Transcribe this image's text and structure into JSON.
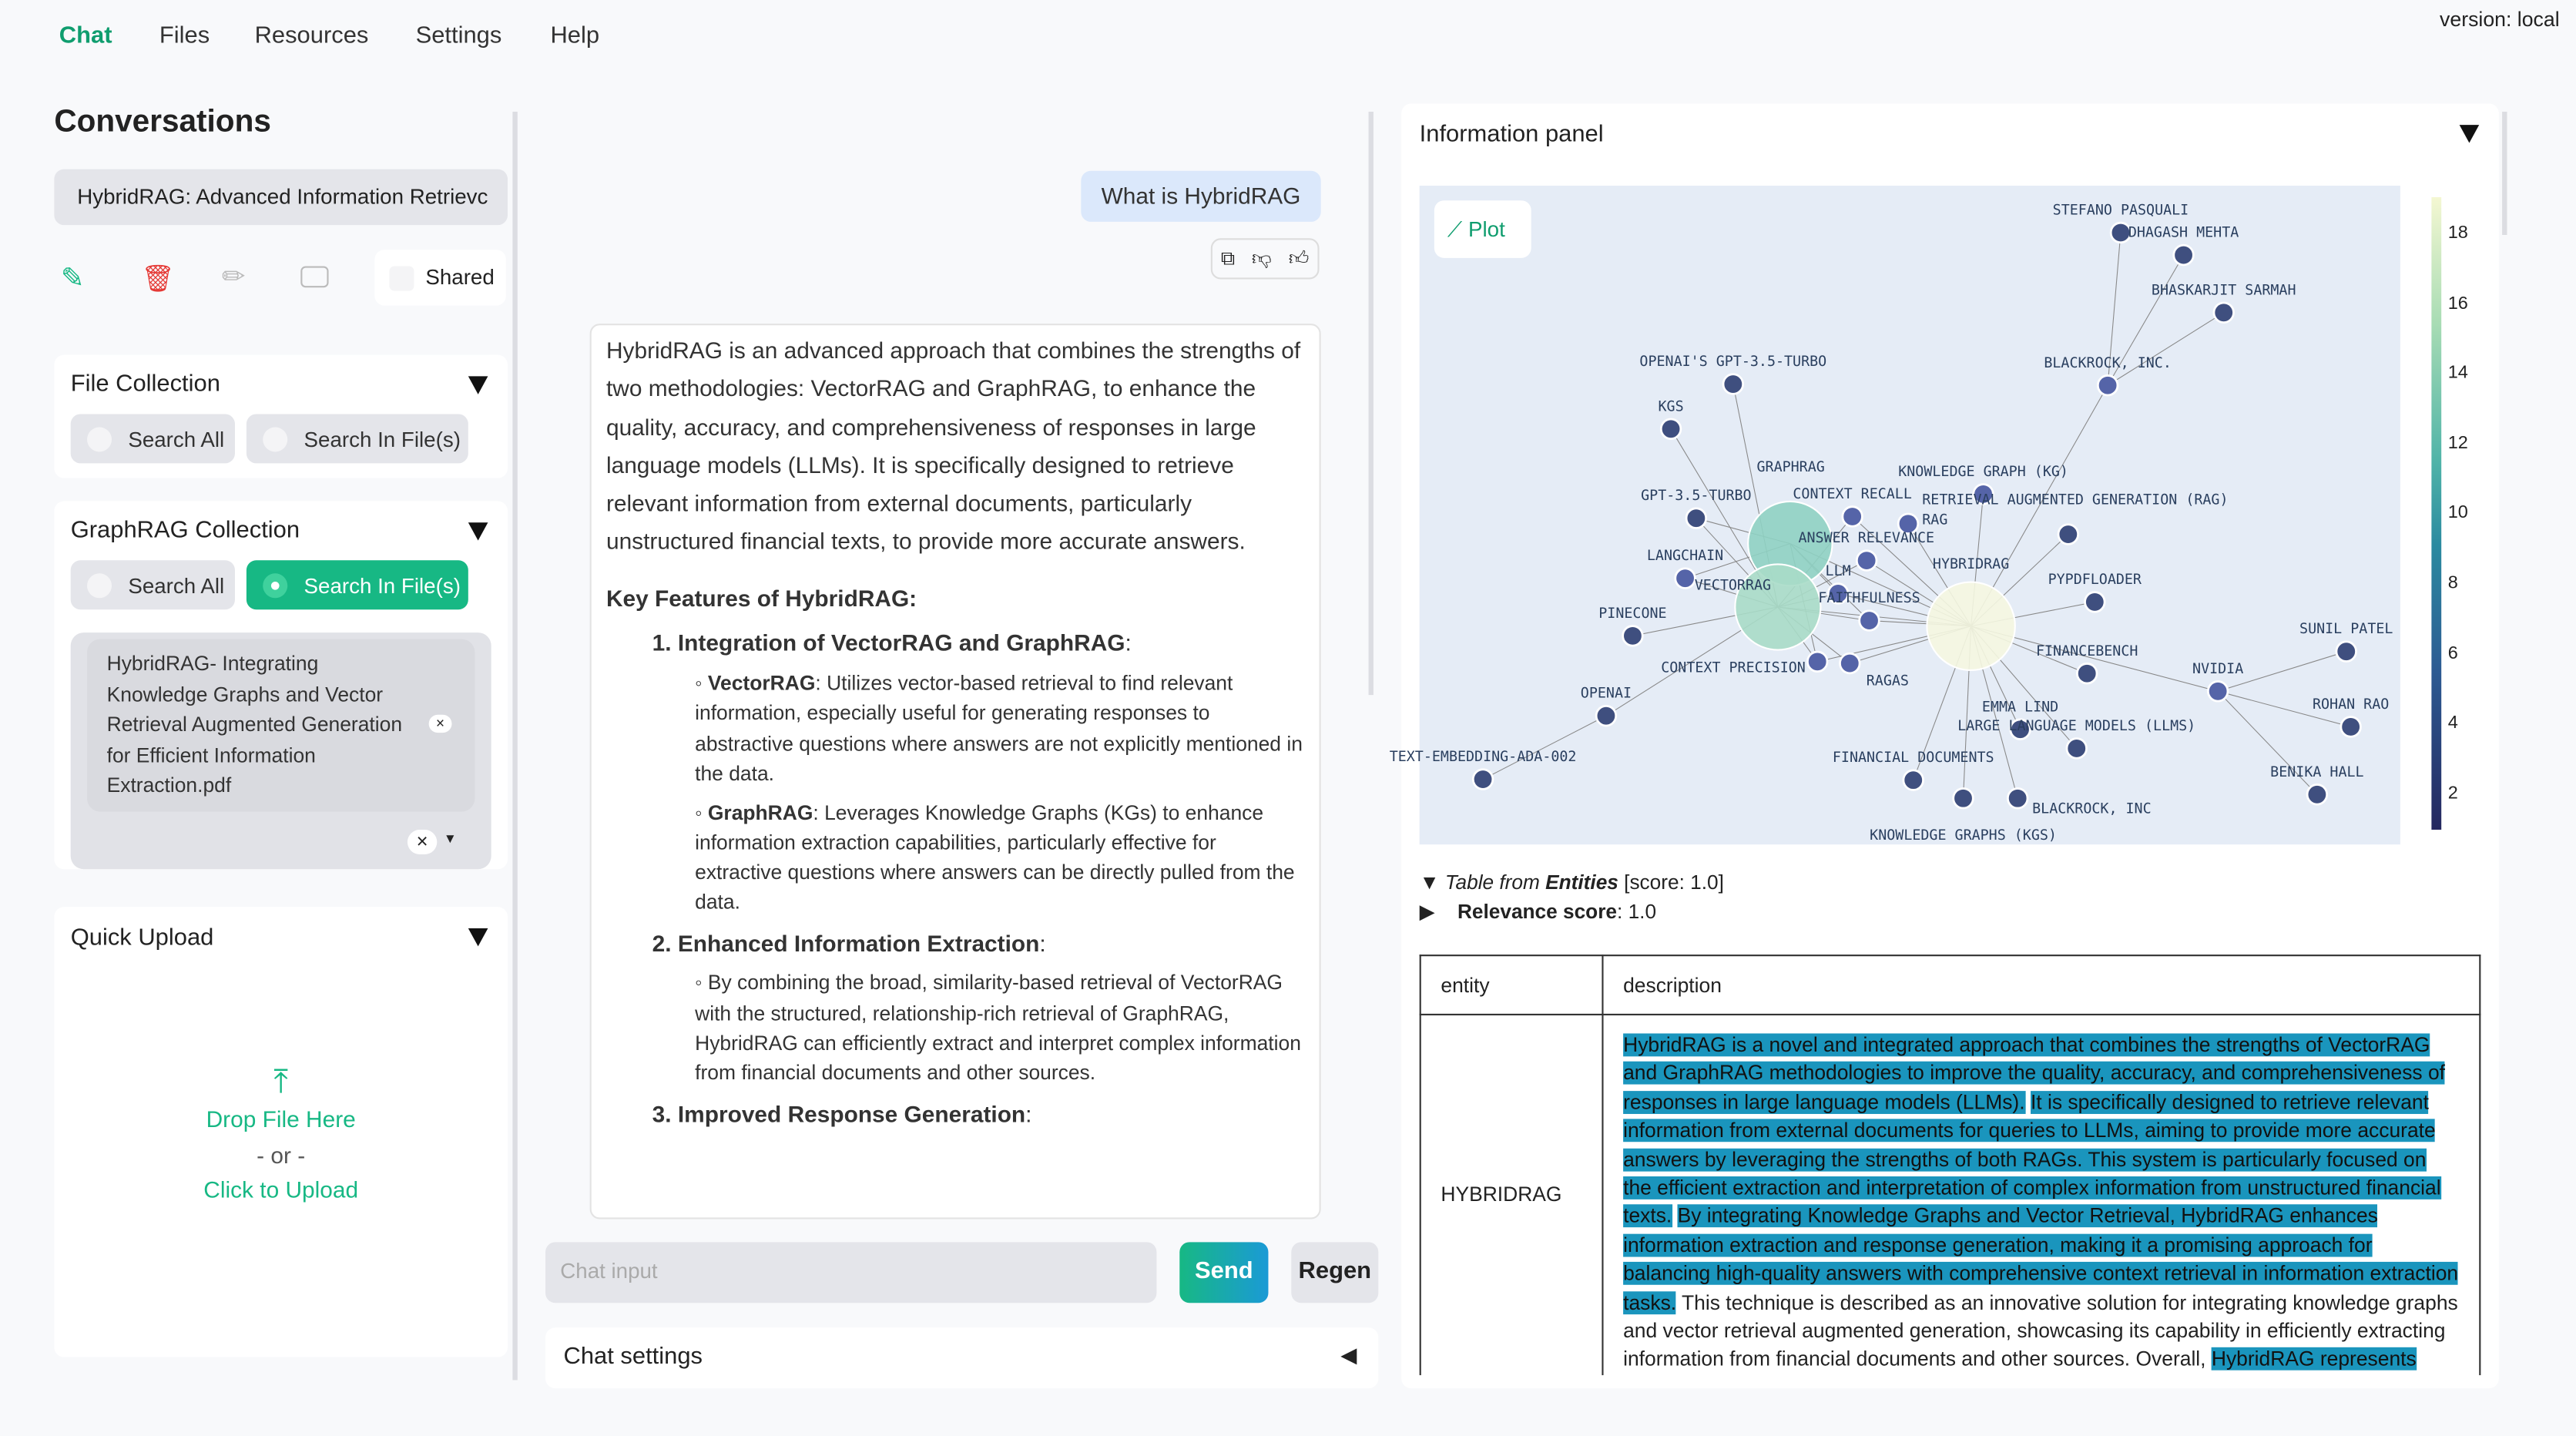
{
  "nav": {
    "items": [
      "Chat",
      "Files",
      "Resources",
      "Settings",
      "Help"
    ],
    "active": "Chat",
    "version": "version: local"
  },
  "sidebar": {
    "title": "Conversations",
    "conversation_select": "HybridRAG: Advanced Information Retrievc",
    "shared_label": "Shared",
    "file_collection": {
      "title": "File Collection",
      "options": [
        "Search All",
        "Search In File(s)"
      ],
      "selected": null
    },
    "graphrag_collection": {
      "title": "GraphRAG Collection",
      "options": [
        "Search All",
        "Search In File(s)"
      ],
      "selected": "Search In File(s)",
      "selected_file": "HybridRAG- Integrating Knowledge Graphs and Vector Retrieval Augmented Generation for Efficient Information Extraction.pdf"
    },
    "quick_upload": {
      "title": "Quick Upload",
      "drop": "Drop File Here",
      "or": "- or -",
      "click": "Click to Upload"
    }
  },
  "chat": {
    "user_message": "What is HybridRAG",
    "response": {
      "intro": "HybridRAG is an advanced approach that combines the strengths of two methodologies: VectorRAG and GraphRAG, to enhance the quality, accuracy, and comprehensiveness of responses in large language models (LLMs). It is specifically designed to retrieve relevant information from external documents, particularly unstructured financial texts, to provide more accurate answers.",
      "features_heading": "Key Features of HybridRAG:",
      "f1_title": "1. Integration of VectorRAG and GraphRAG",
      "f1_a_term": "VectorRAG",
      "f1_a_text": ": Utilizes vector-based retrieval to find relevant information, especially useful for generating responses to abstractive questions where answers are not explicitly mentioned in the data.",
      "f1_b_term": "GraphRAG",
      "f1_b_text": ": Leverages Knowledge Graphs (KGs) to enhance information extraction capabilities, particularly effective for extractive questions where answers can be directly pulled from the data.",
      "f2_title": "2. Enhanced Information Extraction",
      "f2_text": "By combining the broad, similarity-based retrieval of VectorRAG with the structured, relationship-rich retrieval of GraphRAG, HybridRAG can efficiently extract and interpret complex information from financial documents and other sources.",
      "f3_title": "3. Improved Response Generation"
    },
    "input_placeholder": "Chat input",
    "send": "Send",
    "regen": "Regen",
    "settings": "Chat settings"
  },
  "info_panel": {
    "title": "Information panel",
    "plot_button": "Plot",
    "colorbar_ticks": [
      18,
      16,
      14,
      12,
      10,
      8,
      6,
      4,
      2
    ],
    "nodes": [
      "STEFANO PASQUALI",
      "DHAGASH MEHTA",
      "BHASKARJIT SARMAH",
      "BLACKROCK, INC.",
      "OPENAI'S GPT-3.5-TURBO",
      "KGS",
      "GRAPHRAG",
      "GPT-3.5-TURBO",
      "CONTEXT RECALL",
      "RAG",
      "KNOWLEDGE GRAPH (KG)",
      "RETRIEVAL AUGMENTED GENERATION (RAG)",
      "VECTORRAG",
      "ANSWER RELEVANCE",
      "LANGCHAIN",
      "HYBRIDRAG",
      "LLM",
      "PYPDFLOADER",
      "FAITHFULNESS",
      "PINECONE",
      "CONTEXT PRECISION",
      "RAGAS",
      "FINANCEBENCH",
      "SUNIL PATEL",
      "NVIDIA",
      "OPENAI",
      "EMMA LIND",
      "LARGE LANGUAGE MODELS (LLMS)",
      "ROHAN RAO",
      "TEXT-EMBEDDING-ADA-002",
      "FINANCIAL DOCUMENTS",
      "KNOWLEDGE GRAPHS (KGS)",
      "BLACKROCK, INC",
      "BENIKA HALL"
    ],
    "table_caption_prefix": "Table from ",
    "table_caption_source": "Entities",
    "table_caption_score": " [score: 1.0]",
    "relevance_label": "Relevance score",
    "relevance_value": ": 1.0",
    "table": {
      "headers": [
        "entity",
        "description"
      ],
      "row_entity": "HYBRIDRAG",
      "desc_hl_1": "HybridRAG is a novel and integrated approach that combines the strengths of VectorRAG and GraphRAG methodologies to improve the quality, accuracy, and comprehensiveness of responses in large language models (LLMs).",
      "desc_hl_2": "It is specifically designed to retrieve relevant information from external documents for queries to LLMs, aiming to provide more accurate answers by leveraging the strengths of both RAGs. This system is particularly focused on the efficient extraction and interpretation of complex information from unstructured financial texts.",
      "desc_hl_3": "By integrating Knowledge Graphs and Vector Retrieval, HybridRAG enhances information extraction and response generation, making it a promising approach for balancing high-quality answers with comprehensive context retrieval in information extraction tasks.",
      "desc_plain": " This technique is described as an innovative solution for integrating knowledge graphs and vector retrieval augmented generation, showcasing its capability in efficiently extracting information from financial documents and other sources. Overall, ",
      "desc_hl_4": "HybridRAG represents"
    }
  },
  "colors": {
    "accent": "#0f9d6e",
    "send": "#17b884",
    "delete": "#e53935",
    "highlight": "#1a95bd",
    "plot_bg": "#e5ecf6"
  }
}
